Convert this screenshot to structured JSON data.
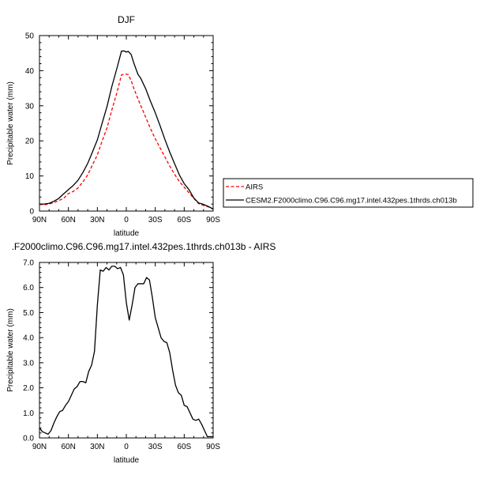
{
  "chart_data": [
    {
      "type": "line",
      "title": "DJF",
      "xlabel": "latitude",
      "ylabel": "Precipitable water (mm)",
      "ylim": [
        0,
        50
      ],
      "xlim": [
        90,
        -90
      ],
      "x_tick_labels": [
        "90N",
        "60N",
        "30N",
        "0",
        "30S",
        "60S",
        "90S"
      ],
      "y_ticks": [
        0,
        10,
        20,
        30,
        40,
        50
      ],
      "x": [
        90,
        85,
        80,
        75,
        70,
        65,
        60,
        55,
        50,
        45,
        40,
        35,
        30,
        25,
        20,
        15,
        10,
        5,
        2,
        0,
        -2,
        -5,
        -8,
        -12,
        -15,
        -20,
        -25,
        -30,
        -35,
        -40,
        -45,
        -50,
        -55,
        -60,
        -65,
        -70,
        -75,
        -80,
        -85,
        -90
      ],
      "legend": {
        "placement": "right"
      },
      "series": [
        {
          "name": "AIRS",
          "color": "#ff0000",
          "dash": true,
          "values": [
            1.9,
            1.8,
            2.0,
            2.4,
            3.0,
            3.6,
            5.0,
            5.6,
            6.6,
            8.3,
            10.3,
            13.2,
            16.0,
            20.0,
            23.7,
            28.8,
            33.5,
            38.8,
            39.0,
            39.0,
            38.9,
            37.2,
            34.8,
            32.0,
            30.0,
            26.8,
            23.5,
            20.6,
            18.0,
            15.4,
            12.8,
            10.5,
            8.4,
            6.8,
            5.2,
            3.6,
            2.1,
            1.6,
            1.2,
            0.5
          ]
        },
        {
          "name": "CESM2.F2000climo.C96.C96.mg17.intel.432pes.1thrds.ch013b",
          "color": "#000000",
          "dash": false,
          "values": [
            2.0,
            2.0,
            2.2,
            2.8,
            3.6,
            4.9,
            6.1,
            7.3,
            8.8,
            11.0,
            13.6,
            16.9,
            20.3,
            25.1,
            29.8,
            35.5,
            40.4,
            45.6,
            45.6,
            45.3,
            45.5,
            44.6,
            42.0,
            39.0,
            37.8,
            34.9,
            31.3,
            28.0,
            24.3,
            20.4,
            16.8,
            13.5,
            10.3,
            7.8,
            6.1,
            3.7,
            2.3,
            1.9,
            1.3,
            0.6
          ]
        }
      ]
    },
    {
      "type": "line",
      "title": ".F2000climo.C96.C96.mg17.intel.432pes.1thrds.ch013b - AIRS",
      "xlabel": "latitude",
      "ylabel": "Precipitable water (mm)",
      "ylim": [
        0,
        7
      ],
      "xlim": [
        90,
        -90
      ],
      "x_tick_labels": [
        "90N",
        "60N",
        "30N",
        "0",
        "30S",
        "60S",
        "90S"
      ],
      "y_ticks": [
        "0.0",
        "1.0",
        "2.0",
        "3.0",
        "4.0",
        "5.0",
        "6.0",
        "7.0"
      ],
      "x": [
        90,
        87,
        84,
        81,
        78,
        75,
        72,
        69,
        66,
        63,
        60,
        57,
        54,
        51,
        48,
        45,
        42,
        39,
        36,
        33,
        30,
        27,
        24,
        21,
        18,
        15,
        12,
        9,
        6,
        3,
        0,
        -3,
        -6,
        -9,
        -12,
        -15,
        -18,
        -21,
        -24,
        -27,
        -30,
        -33,
        -36,
        -39,
        -42,
        -45,
        -48,
        -51,
        -54,
        -57,
        -60,
        -63,
        -66,
        -69,
        -72,
        -75,
        -78,
        -81,
        -84,
        -87,
        -90
      ],
      "series": [
        {
          "color": "#000000",
          "values": [
            0.4,
            0.25,
            0.2,
            0.15,
            0.3,
            0.6,
            0.85,
            1.05,
            1.1,
            1.3,
            1.45,
            1.7,
            1.95,
            2.05,
            2.25,
            2.25,
            2.2,
            2.65,
            2.9,
            3.45,
            5.3,
            6.7,
            6.65,
            6.8,
            6.7,
            6.85,
            6.85,
            6.75,
            6.8,
            6.5,
            5.4,
            4.7,
            5.3,
            6.0,
            6.15,
            6.15,
            6.15,
            6.4,
            6.3,
            5.6,
            4.8,
            4.4,
            4.0,
            3.85,
            3.8,
            3.4,
            2.7,
            2.1,
            1.8,
            1.7,
            1.3,
            1.25,
            1.0,
            0.75,
            0.7,
            0.75,
            0.55,
            0.3,
            0.05,
            0.05,
            0.05
          ]
        }
      ]
    }
  ]
}
